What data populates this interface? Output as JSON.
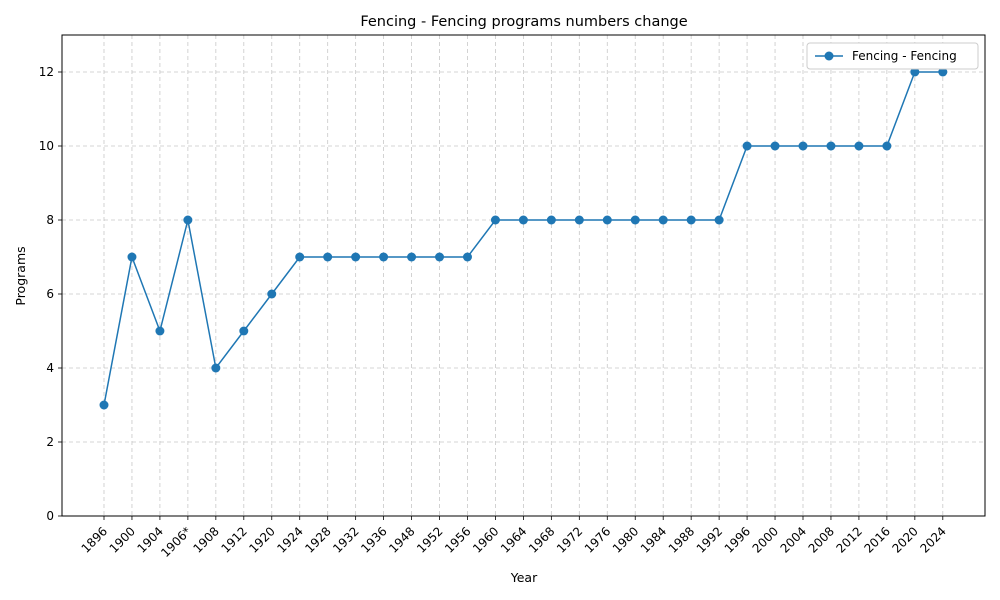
{
  "chart_data": {
    "type": "line",
    "title": "Fencing - Fencing programs numbers change",
    "xlabel": "Year",
    "ylabel": "Programs",
    "categories": [
      "1896",
      "1900",
      "1904",
      "1906*",
      "1908",
      "1912",
      "1920",
      "1924",
      "1928",
      "1932",
      "1936",
      "1948",
      "1952",
      "1956",
      "1960",
      "1964",
      "1968",
      "1972",
      "1976",
      "1980",
      "1984",
      "1988",
      "1992",
      "1996",
      "2000",
      "2004",
      "2008",
      "2012",
      "2016",
      "2020",
      "2024"
    ],
    "series": [
      {
        "name": "Fencing - Fencing",
        "values": [
          3,
          7,
          5,
          8,
          4,
          5,
          6,
          7,
          7,
          7,
          7,
          7,
          7,
          7,
          8,
          8,
          8,
          8,
          8,
          8,
          8,
          8,
          8,
          10,
          10,
          10,
          10,
          10,
          10,
          12,
          12
        ],
        "color": "#1f77b4",
        "marker": "circle"
      }
    ],
    "ylim": [
      0,
      13
    ],
    "yticks": [
      0,
      2,
      4,
      6,
      8,
      10,
      12
    ],
    "grid": true,
    "grid_style": "dashed",
    "legend": "top-right",
    "xtick_rotation": 45
  }
}
